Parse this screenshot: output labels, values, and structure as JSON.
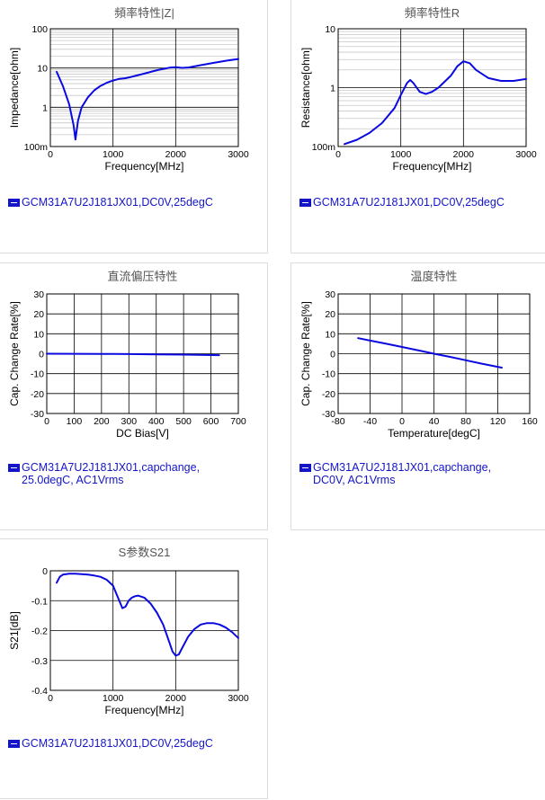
{
  "colors": {
    "line": "#0a0ae0",
    "legend": "#1414c8",
    "grid_major": "#000000",
    "grid_minor": "#c8c8c8"
  },
  "chart_data": [
    {
      "type": "line",
      "title": "頻率特性|Z|",
      "xlabel": "Frequency[MHz]",
      "ylabel": "Impedance[ohm]",
      "xlim": [
        0,
        3000
      ],
      "xticks": [
        0,
        1000,
        2000,
        3000
      ],
      "yscale": "log",
      "ylim": [
        0.1,
        100
      ],
      "yticks": [
        0.1,
        1,
        10,
        100
      ],
      "yticklabels": [
        "100m",
        "1",
        "10",
        "100"
      ],
      "grid": true,
      "series": [
        {
          "name": "GCM31A7U2J181JX01,DC0V,25degC",
          "x": [
            100,
            200,
            300,
            370,
            400,
            440,
            500,
            600,
            700,
            800,
            900,
            1000,
            1100,
            1200,
            1300,
            1500,
            1700,
            1900,
            2000,
            2100,
            2200,
            2400,
            2600,
            2800,
            3000
          ],
          "y": [
            8.0,
            3.5,
            1.2,
            0.35,
            0.15,
            0.45,
            1.0,
            1.8,
            2.7,
            3.5,
            4.2,
            4.8,
            5.3,
            5.5,
            6.0,
            7.2,
            8.8,
            10.2,
            10.5,
            10.1,
            10.3,
            11.8,
            13.5,
            15.3,
            17.0
          ]
        }
      ]
    },
    {
      "type": "line",
      "title": "頻率特性R",
      "xlabel": "Frequency[MHz]",
      "ylabel": "Resistance[ohm]",
      "xlim": [
        0,
        3000
      ],
      "xticks": [
        0,
        1000,
        2000,
        3000
      ],
      "yscale": "log",
      "ylim": [
        0.1,
        10
      ],
      "yticks": [
        0.1,
        1,
        10
      ],
      "yticklabels": [
        "100m",
        "1",
        "10"
      ],
      "grid": true,
      "series": [
        {
          "name": "GCM31A7U2J181JX01,DC0V,25degC",
          "x": [
            100,
            300,
            500,
            700,
            900,
            1000,
            1100,
            1150,
            1200,
            1300,
            1400,
            1500,
            1600,
            1800,
            1900,
            2000,
            2100,
            2200,
            2400,
            2600,
            2800,
            3000
          ],
          "y": [
            0.11,
            0.13,
            0.17,
            0.25,
            0.45,
            0.75,
            1.2,
            1.35,
            1.2,
            0.85,
            0.78,
            0.85,
            1.0,
            1.6,
            2.3,
            2.8,
            2.6,
            2.0,
            1.45,
            1.3,
            1.3,
            1.4
          ]
        }
      ]
    },
    {
      "type": "line",
      "title": "直流偏压特性",
      "xlabel": "DC Bias[V]",
      "ylabel": "Cap. Change Rate[%]",
      "xlim": [
        0,
        700
      ],
      "xticks": [
        0,
        100,
        200,
        300,
        400,
        500,
        600,
        700
      ],
      "ylim": [
        -30,
        30
      ],
      "yticks": [
        -30,
        -20,
        -10,
        0,
        10,
        20,
        30
      ],
      "grid": true,
      "series": [
        {
          "name": "GCM31A7U2J181JX01,capchange, 25.0degC, AC1Vrms",
          "x": [
            0,
            100,
            200,
            300,
            400,
            500,
            630
          ],
          "y": [
            0,
            -0.05,
            -0.1,
            -0.2,
            -0.3,
            -0.45,
            -0.7
          ]
        }
      ]
    },
    {
      "type": "line",
      "title": "温度特性",
      "xlabel": "Temperature[degC]",
      "ylabel": "Cap. Change Rate[%]",
      "xlim": [
        -80,
        160
      ],
      "xticks": [
        -80,
        -40,
        0,
        40,
        80,
        120,
        160
      ],
      "ylim": [
        -30,
        30
      ],
      "yticks": [
        -30,
        -20,
        -10,
        0,
        10,
        20,
        30
      ],
      "grid": true,
      "series": [
        {
          "name": "GCM31A7U2J181JX01,capchange, DC0V, AC1Vrms",
          "x": [
            -55,
            -40,
            -20,
            0,
            25,
            40,
            60,
            80,
            100,
            125
          ],
          "y": [
            7.8,
            6.6,
            5.0,
            3.4,
            1.3,
            0.0,
            -1.6,
            -3.3,
            -5.0,
            -7.0
          ]
        }
      ]
    },
    {
      "type": "line",
      "title": "S参数S21",
      "xlabel": "Frequency[MHz]",
      "ylabel": "S21[dB]",
      "xlim": [
        0,
        3000
      ],
      "xticks": [
        0,
        1000,
        2000,
        3000
      ],
      "ylim": [
        -0.4,
        0
      ],
      "yticks": [
        -0.4,
        -0.3,
        -0.2,
        -0.1,
        0
      ],
      "grid": true,
      "series": [
        {
          "name": "GCM31A7U2J181JX01,DC0V,25degC",
          "x": [
            100,
            150,
            200,
            300,
            400,
            500,
            600,
            700,
            800,
            900,
            1000,
            1100,
            1150,
            1200,
            1250,
            1300,
            1350,
            1400,
            1500,
            1600,
            1700,
            1800,
            1900,
            1950,
            2000,
            2050,
            2100,
            2200,
            2300,
            2400,
            2500,
            2600,
            2700,
            2800,
            2900,
            3000
          ],
          "y": [
            -0.04,
            -0.02,
            -0.013,
            -0.01,
            -0.01,
            -0.011,
            -0.013,
            -0.016,
            -0.02,
            -0.03,
            -0.05,
            -0.1,
            -0.125,
            -0.12,
            -0.1,
            -0.09,
            -0.085,
            -0.083,
            -0.09,
            -0.11,
            -0.14,
            -0.18,
            -0.24,
            -0.27,
            -0.284,
            -0.28,
            -0.26,
            -0.22,
            -0.195,
            -0.18,
            -0.175,
            -0.175,
            -0.18,
            -0.19,
            -0.205,
            -0.225
          ]
        }
      ]
    }
  ],
  "legends": [
    "GCM31A7U2J181JX01,DC0V,25degC",
    "GCM31A7U2J181JX01,DC0V,25degC",
    "GCM31A7U2J181JX01,capchange, 25.0degC, AC1Vrms",
    "GCM31A7U2J181JX01,capchange, DC0V, AC1Vrms",
    "GCM31A7U2J181JX01,DC0V,25degC"
  ]
}
